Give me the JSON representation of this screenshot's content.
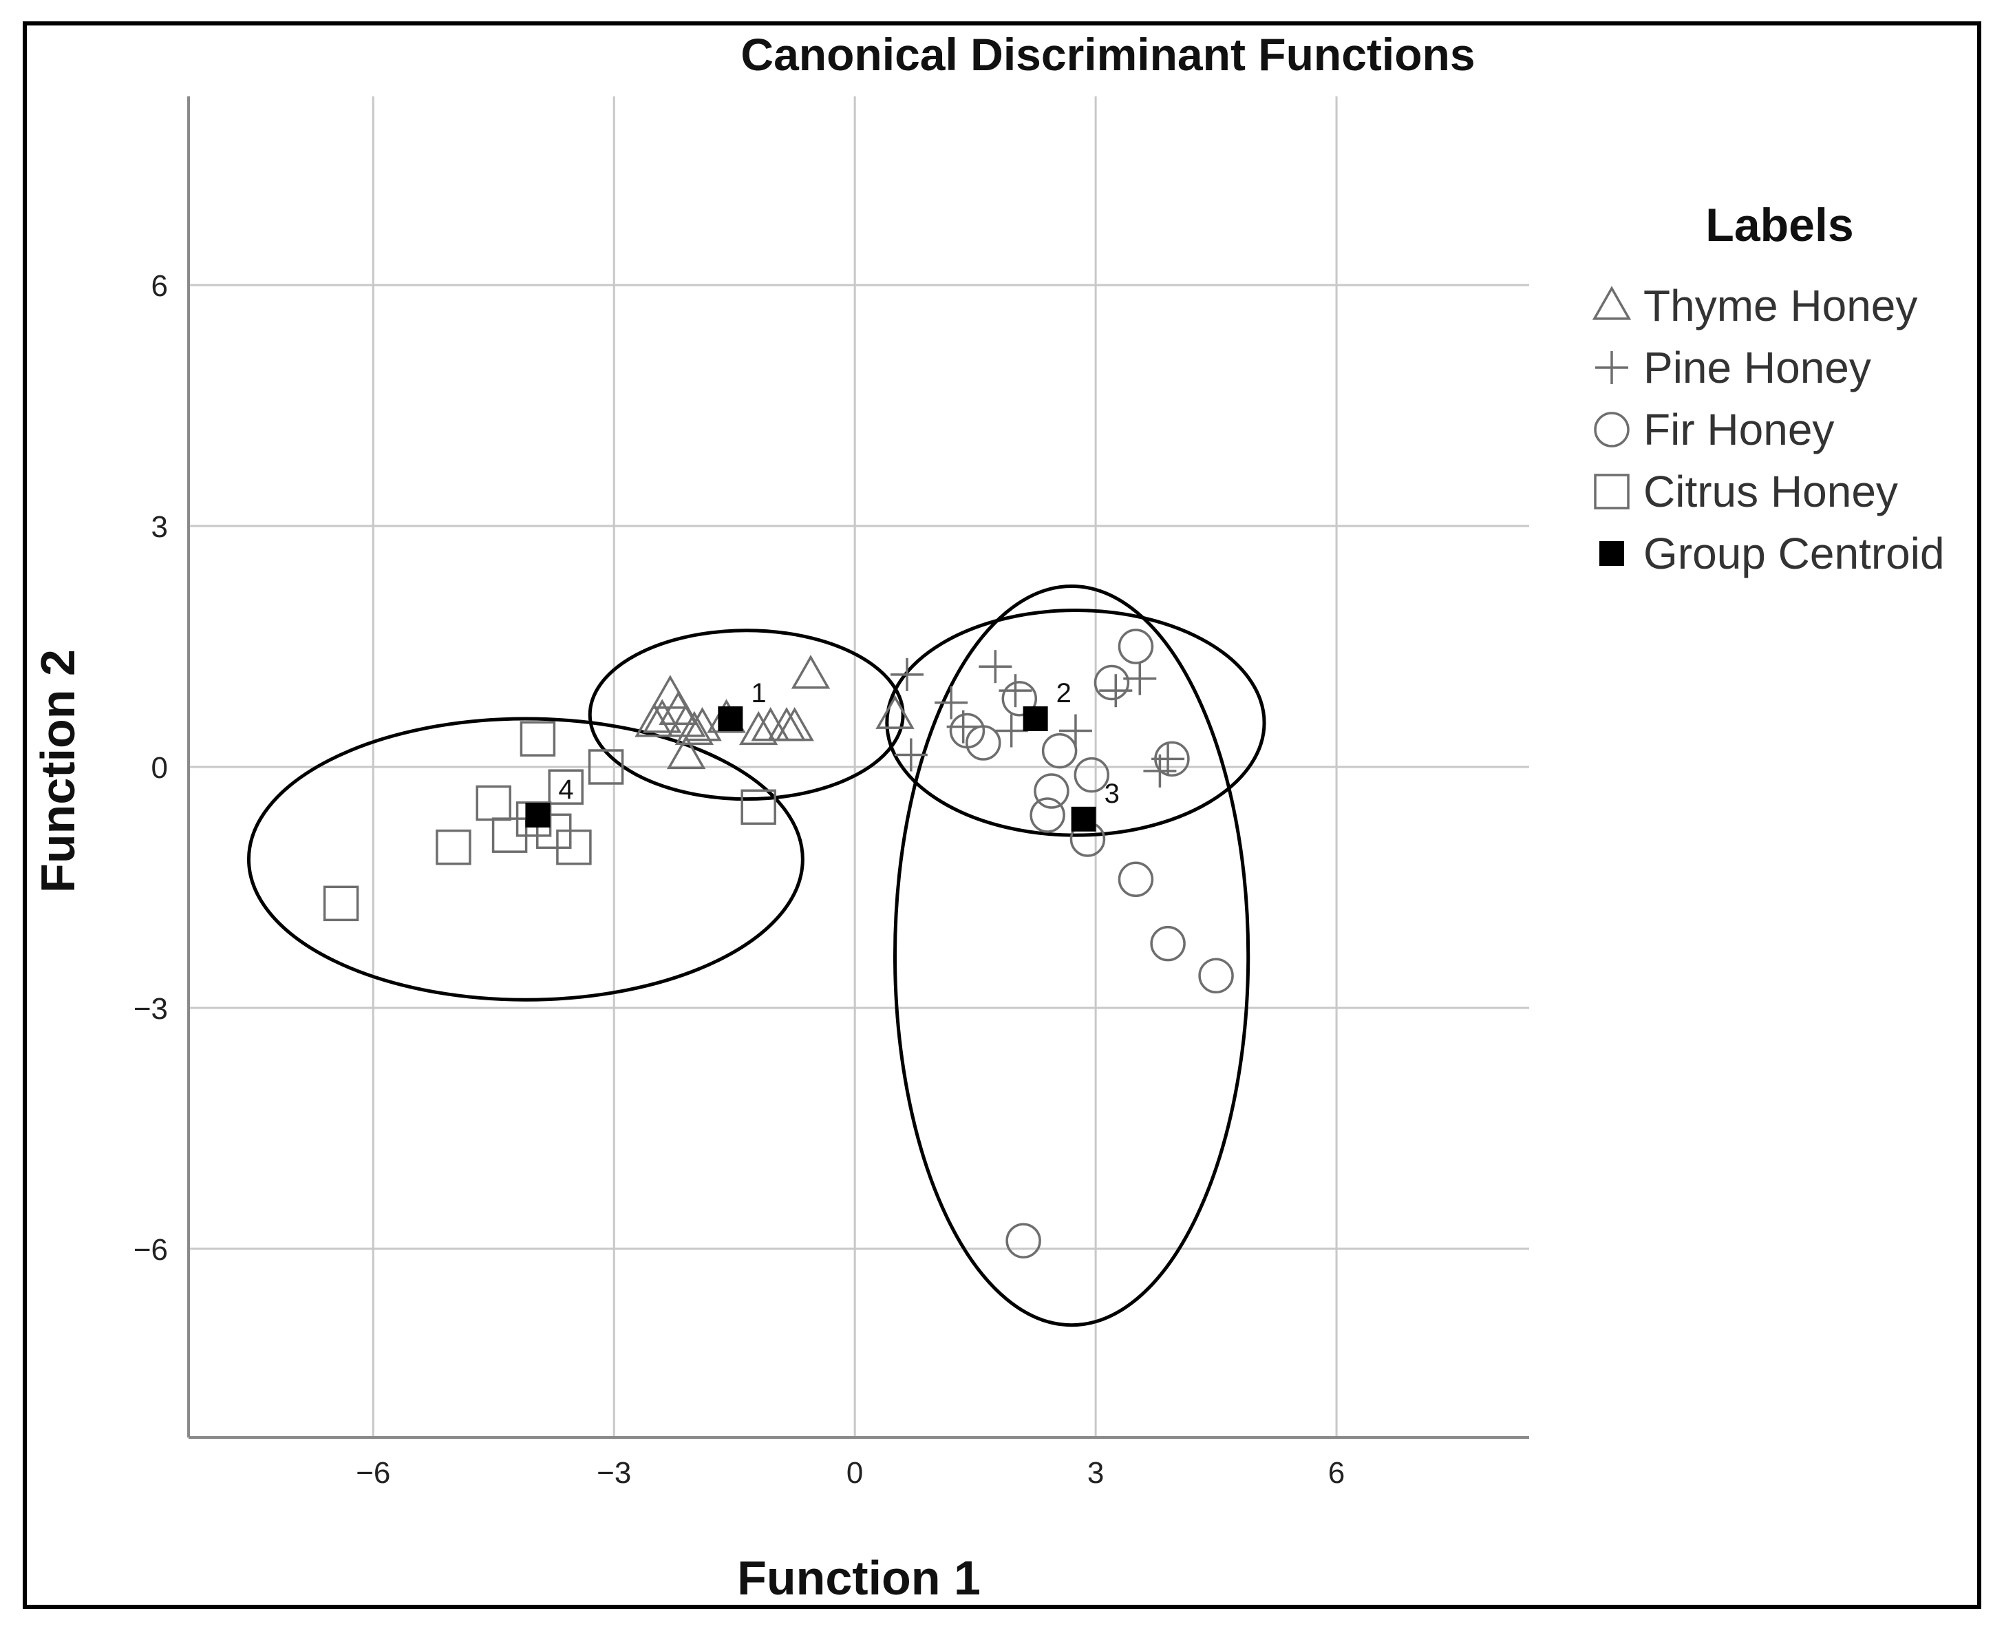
{
  "chart_data": {
    "type": "scatter",
    "title": "Canonical Discriminant Functions",
    "xlabel": "Function 1",
    "ylabel": "Function 2",
    "xlim": [
      -8.3,
      8.4
    ],
    "ylim": [
      -8.35,
      8.35
    ],
    "xticks": [
      -6,
      -3,
      0,
      3,
      6
    ],
    "yticks": [
      6,
      3,
      0,
      -3,
      -6
    ],
    "x_tick_labels": [
      "−6",
      "−3",
      "0",
      "3",
      "6"
    ],
    "y_tick_labels": [
      "6",
      "3",
      "0",
      "−3",
      "−6"
    ],
    "grid": true,
    "legend": {
      "title": "Labels",
      "position": "right",
      "entries": [
        {
          "label": "Thyme Honey",
          "marker": "triangle"
        },
        {
          "label": "Pine Honey",
          "marker": "plus"
        },
        {
          "label": "Fir Honey",
          "marker": "circle"
        },
        {
          "label": "Citrus Honey",
          "marker": "square"
        },
        {
          "label": "Group Centroid",
          "marker": "filled-square"
        }
      ]
    },
    "series": [
      {
        "name": "Thyme Honey",
        "marker": "triangle",
        "points": [
          [
            -2.3,
            0.9
          ],
          [
            -2.4,
            0.6
          ],
          [
            -2.5,
            0.55
          ],
          [
            -2.2,
            0.7
          ],
          [
            -2.1,
            0.55
          ],
          [
            -2.0,
            0.45
          ],
          [
            -2.1,
            0.15
          ],
          [
            -1.9,
            0.5
          ],
          [
            -1.6,
            0.6
          ],
          [
            -1.2,
            0.45
          ],
          [
            -1.05,
            0.5
          ],
          [
            -0.85,
            0.5
          ],
          [
            -0.75,
            0.5
          ],
          [
            -0.55,
            1.15
          ],
          [
            0.5,
            0.65
          ]
        ]
      },
      {
        "name": "Pine Honey",
        "marker": "plus",
        "points": [
          [
            0.65,
            1.15
          ],
          [
            0.7,
            0.15
          ],
          [
            1.2,
            0.8
          ],
          [
            1.35,
            0.5
          ],
          [
            1.75,
            1.25
          ],
          [
            1.95,
            0.45
          ],
          [
            2.0,
            0.95
          ],
          [
            2.75,
            0.45
          ],
          [
            3.25,
            0.95
          ],
          [
            3.55,
            1.1
          ],
          [
            3.8,
            -0.05
          ],
          [
            3.9,
            0.1
          ]
        ]
      },
      {
        "name": "Fir Honey",
        "marker": "circle",
        "points": [
          [
            1.4,
            0.45
          ],
          [
            1.6,
            0.3
          ],
          [
            2.05,
            0.85
          ],
          [
            2.55,
            0.2
          ],
          [
            2.45,
            -0.3
          ],
          [
            2.4,
            -0.6
          ],
          [
            2.95,
            -0.1
          ],
          [
            2.9,
            -0.9
          ],
          [
            3.2,
            1.05
          ],
          [
            3.5,
            1.5
          ],
          [
            3.5,
            -1.4
          ],
          [
            3.95,
            0.1
          ],
          [
            3.9,
            -2.2
          ],
          [
            4.5,
            -2.6
          ],
          [
            2.1,
            -5.9
          ]
        ]
      },
      {
        "name": "Citrus Honey",
        "marker": "square",
        "points": [
          [
            -6.4,
            -1.7
          ],
          [
            -5.0,
            -1.0
          ],
          [
            -4.5,
            -0.45
          ],
          [
            -4.3,
            -0.85
          ],
          [
            -4.0,
            -0.65
          ],
          [
            -3.95,
            0.35
          ],
          [
            -3.75,
            -0.8
          ],
          [
            -3.6,
            -0.25
          ],
          [
            -3.5,
            -1.0
          ],
          [
            -3.1,
            0.0
          ],
          [
            -1.2,
            -0.5
          ]
        ]
      }
    ],
    "centroids": [
      {
        "label": "1",
        "x": -1.55,
        "y": 0.6
      },
      {
        "label": "2",
        "x": 2.25,
        "y": 0.6
      },
      {
        "label": "3",
        "x": 2.85,
        "y": -0.65
      },
      {
        "label": "4",
        "x": -3.95,
        "y": -0.6
      }
    ],
    "ellipses": [
      {
        "group": "1",
        "cx": -1.35,
        "cy": 0.65,
        "rx": 1.95,
        "ry": 1.05
      },
      {
        "group": "2",
        "cx": 2.75,
        "cy": 0.55,
        "rx": 2.35,
        "ry": 1.4
      },
      {
        "group": "3",
        "cx": 2.7,
        "cy": -2.35,
        "rx": 2.2,
        "ry": 4.6
      },
      {
        "group": "4",
        "cx": -4.1,
        "cy": -1.15,
        "rx": 3.45,
        "ry": 1.75
      }
    ]
  }
}
